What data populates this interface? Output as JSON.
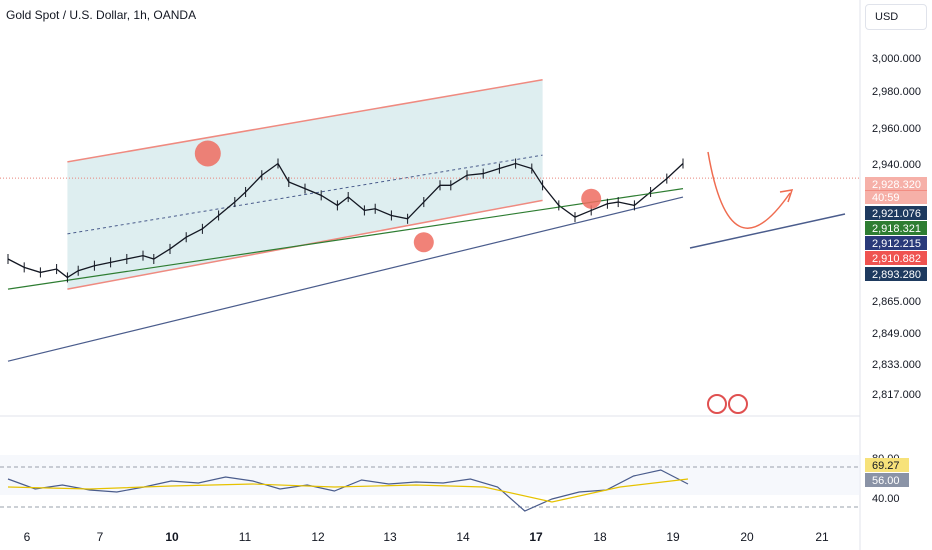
{
  "header": {
    "title": "Gold Spot / U.S. Dollar, 1h, OANDA"
  },
  "currency": {
    "label": "USD"
  },
  "chart_data": [
    {
      "type": "line",
      "panel": "price",
      "y_axis": {
        "ticks": [
          "3,000.000",
          "2,980.000",
          "2,960.000",
          "2,940.000",
          "2,865.000",
          "2,849.000",
          "2,833.000",
          "2,817.000"
        ]
      },
      "x_axis": {
        "ticks": [
          "6",
          "7",
          "10",
          "11",
          "12",
          "13",
          "14",
          "17",
          "18",
          "19",
          "20",
          "21"
        ]
      },
      "series": [
        {
          "color": "#131722",
          "x": [
            0,
            3,
            6,
            9,
            11,
            13,
            16,
            19,
            22,
            25,
            27,
            30,
            33,
            36,
            39,
            42,
            44,
            47,
            50,
            52,
            55,
            58,
            61,
            63,
            66,
            68,
            71,
            74,
            77,
            80,
            82,
            85,
            88,
            91,
            94,
            97,
            99,
            102,
            105,
            108,
            111,
            113,
            116,
            119,
            122,
            125
          ],
          "values": [
            2880,
            2875,
            2872,
            2874,
            2869,
            2873,
            2876,
            2878,
            2880,
            2882,
            2880,
            2886,
            2893,
            2898,
            2906,
            2914,
            2920,
            2930,
            2937,
            2926,
            2922,
            2918,
            2912,
            2917,
            2909,
            2910,
            2906,
            2904,
            2914,
            2924,
            2924,
            2930,
            2931,
            2934,
            2937,
            2934,
            2924,
            2912,
            2905,
            2909,
            2913,
            2914,
            2912,
            2920,
            2928,
            2937
          ]
        },
        {
          "color": "#4a5c8c",
          "x": [
            0,
            125
          ],
          "values": [
            2819,
            2917
          ]
        },
        {
          "color": "#2e7d32",
          "x": [
            0,
            125
          ],
          "values": [
            2862,
            2922
          ]
        }
      ],
      "channel": {
        "x": [
          11,
          99
        ],
        "upper": [
          2938,
          2987
        ],
        "lower": [
          2862,
          2915
        ]
      },
      "markers": [
        {
          "x": 37,
          "value": 2943
        },
        {
          "x": 77,
          "value": 2890
        },
        {
          "x": 108,
          "value": 2916
        }
      ],
      "price_labels": [
        "2,928.320",
        "40:59",
        "2,921.076",
        "2,918.321",
        "2,912.215",
        "2,910.882",
        "2,893.280"
      ]
    },
    {
      "type": "line",
      "panel": "rsi",
      "y_axis": {
        "ticks": [
          "80.00",
          "40.00"
        ]
      },
      "series": [
        {
          "color": "#4a5c8c",
          "x": [
            0,
            4,
            8,
            12,
            16,
            20,
            24,
            28,
            32,
            36,
            40,
            44,
            48,
            52,
            56,
            60,
            64,
            68,
            72,
            76,
            80,
            84,
            88,
            92,
            96,
            100
          ],
          "values": [
            68,
            58,
            62,
            57,
            55,
            60,
            66,
            64,
            70,
            66,
            58,
            62,
            56,
            67,
            63,
            65,
            64,
            68,
            60,
            36,
            48,
            55,
            57,
            71,
            77,
            63
          ]
        },
        {
          "color": "#e6c200",
          "x": [
            0,
            12,
            24,
            36,
            48,
            60,
            70,
            80,
            90,
            100
          ],
          "values": [
            60,
            58,
            61,
            63,
            60,
            62,
            60,
            45,
            60,
            68
          ]
        }
      ],
      "price_labels": [
        "69.27",
        "56.00"
      ]
    }
  ]
}
